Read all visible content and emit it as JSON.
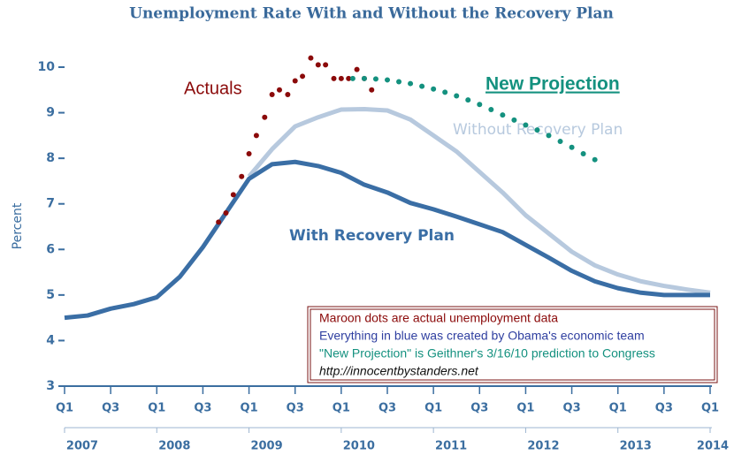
{
  "chart_data": {
    "type": "line",
    "title": "Unemployment Rate With and Without the Recovery Plan",
    "ylabel": "Percent",
    "xlim": [
      2007,
      2014
    ],
    "ylim": [
      3,
      10
    ],
    "yticks": [
      3,
      4,
      5,
      6,
      7,
      8,
      9,
      10
    ],
    "xticks": [
      {
        "value": 2007,
        "label": "Q1"
      },
      {
        "value": 2007.5,
        "label": "Q3"
      },
      {
        "value": 2008,
        "label": "Q1"
      },
      {
        "value": 2008.5,
        "label": "Q3"
      },
      {
        "value": 2009,
        "label": "Q1"
      },
      {
        "value": 2009.5,
        "label": "Q3"
      },
      {
        "value": 2010,
        "label": "Q1"
      },
      {
        "value": 2010.5,
        "label": "Q3"
      },
      {
        "value": 2011,
        "label": "Q1"
      },
      {
        "value": 2011.5,
        "label": "Q3"
      },
      {
        "value": 2012,
        "label": "Q1"
      },
      {
        "value": 2012.5,
        "label": "Q3"
      },
      {
        "value": 2013,
        "label": "Q1"
      },
      {
        "value": 2013.5,
        "label": "Q3"
      },
      {
        "value": 2014,
        "label": "Q1"
      }
    ],
    "year_ticks": [
      2007,
      2008,
      2009,
      2010,
      2011,
      2012,
      2013,
      2014
    ],
    "grid": false,
    "series": [
      {
        "name": "Without Recovery Plan",
        "color": "#b7c9de",
        "style": "line",
        "x": [
          2009,
          2009.25,
          2009.5,
          2009.75,
          2010,
          2010.25,
          2010.5,
          2010.75,
          2011,
          2011.25,
          2011.5,
          2011.75,
          2012,
          2012.25,
          2012.5,
          2012.75,
          2013,
          2013.25,
          2013.5,
          2013.75,
          2014
        ],
        "values": [
          7.6,
          8.2,
          8.7,
          8.9,
          9.07,
          9.08,
          9.05,
          8.85,
          8.5,
          8.15,
          7.7,
          7.25,
          6.75,
          6.35,
          5.95,
          5.65,
          5.45,
          5.3,
          5.2,
          5.12,
          5.05
        ]
      },
      {
        "name": "With Recovery Plan",
        "color": "#3a6ea5",
        "style": "line",
        "x": [
          2007,
          2007.25,
          2007.5,
          2007.75,
          2008,
          2008.25,
          2008.5,
          2008.75,
          2009,
          2009.25,
          2009.5,
          2009.75,
          2010,
          2010.25,
          2010.5,
          2010.75,
          2011,
          2011.25,
          2011.5,
          2011.75,
          2012,
          2012.25,
          2012.5,
          2012.75,
          2013,
          2013.25,
          2013.5,
          2013.75,
          2014
        ],
        "values": [
          4.5,
          4.55,
          4.7,
          4.8,
          4.95,
          5.4,
          6.05,
          6.8,
          7.55,
          7.87,
          7.92,
          7.83,
          7.68,
          7.42,
          7.25,
          7.02,
          6.88,
          6.72,
          6.55,
          6.38,
          6.1,
          5.82,
          5.53,
          5.3,
          5.15,
          5.05,
          5.0,
          5.0,
          5.0
        ]
      },
      {
        "name": "Actuals",
        "color": "#8b0a0a",
        "style": "dots",
        "x": [
          2008.67,
          2008.75,
          2008.83,
          2008.92,
          2009.0,
          2009.08,
          2009.17,
          2009.25,
          2009.33,
          2009.42,
          2009.5,
          2009.58,
          2009.67,
          2009.75,
          2009.83,
          2009.92,
          2010.0,
          2010.08,
          2010.17,
          2010.25,
          2010.33
        ],
        "values": [
          6.6,
          6.8,
          7.2,
          7.6,
          8.1,
          8.5,
          8.9,
          9.4,
          9.5,
          9.4,
          9.7,
          9.8,
          10.2,
          10.05,
          10.05,
          9.75,
          9.75,
          9.75,
          9.95,
          9.75,
          9.5
        ]
      },
      {
        "name": "New Projection",
        "color": "#14917f",
        "style": "dots",
        "x": [
          2010.125,
          2010.25,
          2010.375,
          2010.5,
          2010.625,
          2010.75,
          2010.875,
          2011.0,
          2011.125,
          2011.25,
          2011.375,
          2011.5,
          2011.625,
          2011.75,
          2011.875,
          2012.0,
          2012.125,
          2012.25,
          2012.375,
          2012.5,
          2012.625,
          2012.75
        ],
        "values": [
          9.75,
          9.75,
          9.74,
          9.72,
          9.68,
          9.64,
          9.58,
          9.52,
          9.45,
          9.37,
          9.28,
          9.18,
          9.07,
          8.95,
          8.84,
          8.73,
          8.62,
          8.5,
          8.37,
          8.24,
          8.1,
          7.97
        ]
      }
    ],
    "note_lines": [
      {
        "text": "Maroon dots are actual unemployment data",
        "color": "#8b0a0a"
      },
      {
        "text": "Everything in blue was created by Obama's economic team",
        "color": "#2f3fa0"
      },
      {
        "text": "\"New Projection\" is Geithner's 3/16/10 prediction to Congress",
        "color": "#14917f"
      },
      {
        "text": "http://innocentbystanders.net",
        "color": "#111111"
      }
    ]
  }
}
